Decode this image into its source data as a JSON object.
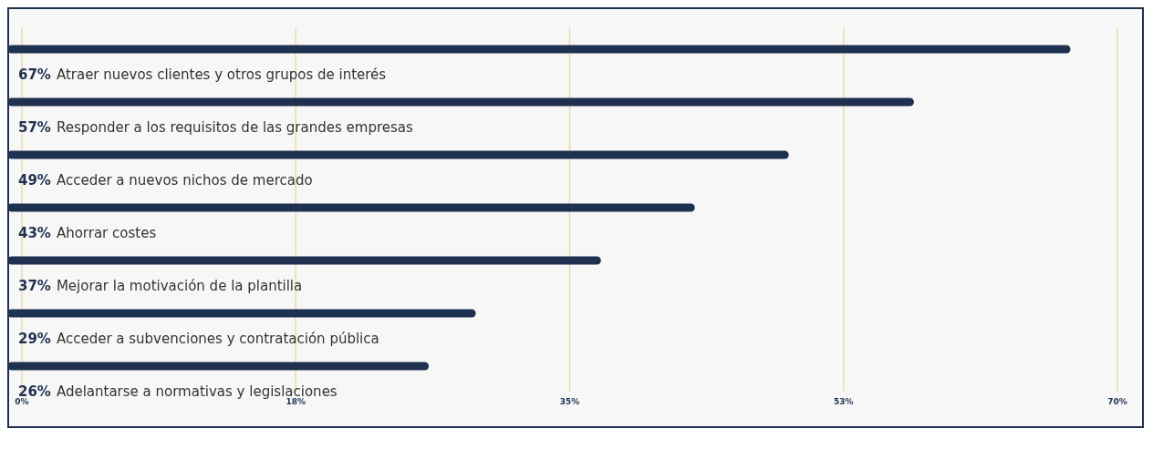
{
  "chart_data": {
    "type": "bar",
    "orientation": "horizontal",
    "categories": [
      "Atraer nuevos clientes y otros grupos de interés",
      "Responder a los requisitos de las grandes empresas",
      "Acceder a nuevos nichos de mercado",
      "Ahorrar costes",
      "Mejorar la motivación de la plantilla",
      "Acceder a subvenciones y contratación pública",
      "Adelantarse a normativas y legislaciones"
    ],
    "values": [
      67,
      57,
      49,
      43,
      37,
      29,
      26
    ],
    "value_labels": [
      "67%",
      "57%",
      "49%",
      "43%",
      "37%",
      "29%",
      "26%"
    ],
    "color": "#1f3150",
    "xlim": [
      0,
      70
    ],
    "xticks": [
      {
        "value": 0,
        "label": "0%"
      },
      {
        "value": 17.5,
        "label": "18%"
      },
      {
        "value": 35,
        "label": "35%"
      },
      {
        "value": 52.5,
        "label": "53%"
      },
      {
        "value": 70,
        "label": "70%"
      }
    ],
    "grid": "x"
  }
}
